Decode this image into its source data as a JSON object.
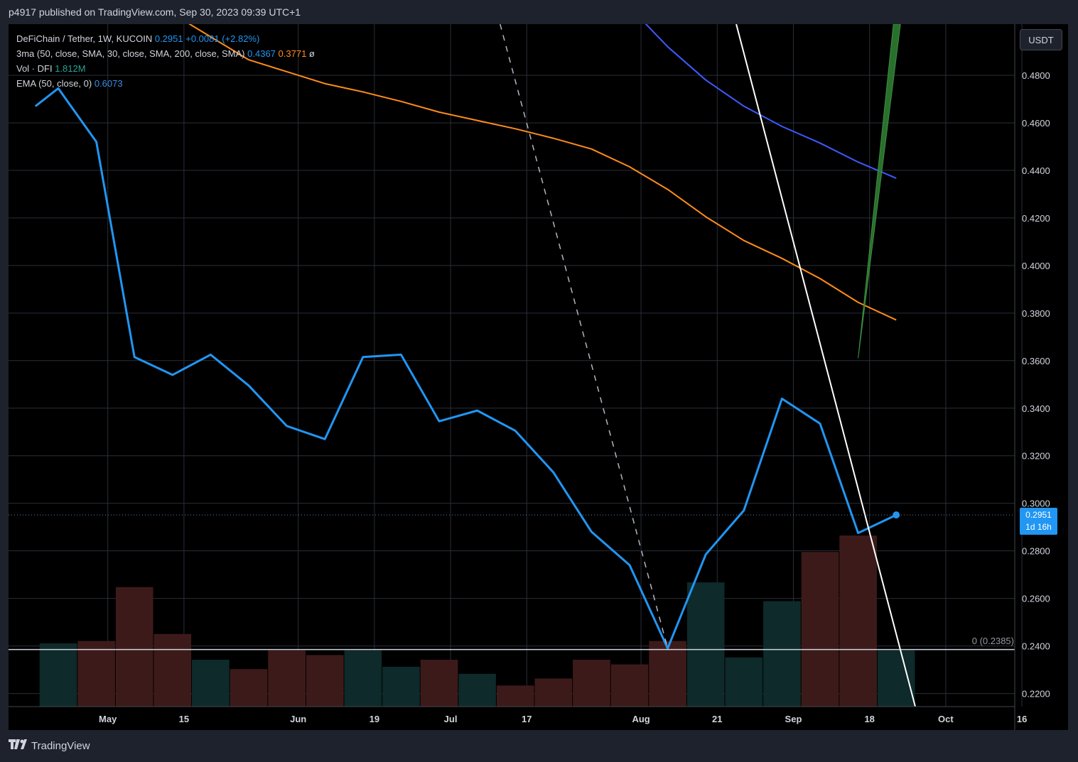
{
  "header": {
    "title": "p4917 published on TradingView.com, Sep 30, 2023 09:39 UTC+1"
  },
  "legend": {
    "symbol": "DeFiChain / Tether, 1W, KUCOIN",
    "price": "0.2951",
    "change": "+0.0081 (+2.82%)",
    "ma_label": "3ma (50, close, SMA, 30, close, SMA, 200, close, SMA)",
    "ma_val1": "0.4367",
    "ma_val2": "0.3771",
    "ma_val3": "ø",
    "vol_label": "Vol · DFI",
    "vol_val": "1.812M",
    "ema_label": "EMA (50, close, 0)",
    "ema_val": "0.6073"
  },
  "currency_button": "USDT",
  "price_tag": {
    "price": "0.2951",
    "countdown": "1d 16h"
  },
  "fib_label": "0 (0.2385)",
  "footer": {
    "brand": "TradingView"
  },
  "colors": {
    "price_line": "#2196f3",
    "sma30": "#ff8c1a",
    "sma50": "#3d5afe",
    "vol_down": "#3d1a1a",
    "vol_up": "#0e2a2a",
    "grid": "#2a2e39",
    "trend_green": "#2e7d32"
  },
  "chart_data": {
    "type": "line",
    "title": "DeFiChain / Tether, 1W, KUCOIN",
    "ylabel": "USDT",
    "ylim": [
      0.2145,
      0.5015
    ],
    "y_ticks": [
      0.48,
      0.46,
      0.44,
      0.42,
      0.4,
      0.38,
      0.36,
      0.34,
      0.32,
      0.3,
      0.28,
      0.26,
      0.24,
      0.22
    ],
    "y_tick_labels": [
      "0.4800",
      "0.4600",
      "0.4400",
      "0.4200",
      "0.4000",
      "0.3800",
      "0.3600",
      "0.3400",
      "0.3200",
      "0.3000",
      "0.2800",
      "0.2600",
      "0.2400",
      "0.2200"
    ],
    "x_tick_labels": [
      {
        "label": "May",
        "week": 1.3
      },
      {
        "label": "15",
        "week": 3.3
      },
      {
        "label": "Jun",
        "week": 6.3
      },
      {
        "label": "19",
        "week": 8.3
      },
      {
        "label": "Jul",
        "week": 10.3
      },
      {
        "label": "17",
        "week": 12.3
      },
      {
        "label": "Aug",
        "week": 15.3
      },
      {
        "label": "21",
        "week": 17.3
      },
      {
        "label": "Sep",
        "week": 19.3
      },
      {
        "label": "18",
        "week": 21.3
      },
      {
        "label": "Oct",
        "week": 23.3
      },
      {
        "label": "16",
        "week": 25.3
      }
    ],
    "series": [
      {
        "name": "Close",
        "x": [
          -0.6,
          0,
          1,
          2,
          3,
          4,
          5,
          6,
          7,
          8,
          9,
          10,
          11,
          12,
          13,
          14,
          15,
          16,
          17,
          18,
          19,
          20,
          21,
          22
        ],
        "values": [
          0.467,
          0.4745,
          0.452,
          0.3615,
          0.354,
          0.3625,
          0.3495,
          0.3325,
          0.327,
          0.3615,
          0.3625,
          0.3345,
          0.339,
          0.3305,
          0.313,
          0.288,
          0.274,
          0.239,
          0.2785,
          0.297,
          0.344,
          0.3335,
          0.2875,
          0.2951
        ]
      },
      {
        "name": "SMA 30",
        "x": [
          3.4,
          5,
          6,
          7,
          8,
          9,
          10,
          11,
          12,
          13,
          14,
          15,
          16,
          17,
          18,
          19,
          20,
          21,
          22
        ],
        "values": [
          0.502,
          0.4865,
          0.4815,
          0.4765,
          0.473,
          0.469,
          0.4645,
          0.461,
          0.4575,
          0.4535,
          0.449,
          0.4415,
          0.432,
          0.4205,
          0.4105,
          0.403,
          0.3945,
          0.3845,
          0.3771
        ]
      },
      {
        "name": "SMA 50",
        "x": [
          15.4,
          16,
          17,
          18,
          19,
          20,
          21,
          22
        ],
        "values": [
          0.502,
          0.492,
          0.478,
          0.467,
          0.4585,
          0.4515,
          0.4435,
          0.4367
        ]
      }
    ],
    "volume": {
      "x": [
        0,
        1,
        2,
        3,
        4,
        5,
        6,
        7,
        8,
        9,
        10,
        11,
        12,
        13,
        14,
        15,
        16,
        17,
        18,
        19,
        20,
        21,
        22
      ],
      "direction": [
        "up",
        "down",
        "down",
        "down",
        "up",
        "down",
        "down",
        "down",
        "up",
        "up",
        "down",
        "up",
        "down",
        "down",
        "down",
        "down",
        "down",
        "up",
        "up",
        "up",
        "down",
        "down",
        "up"
      ],
      "height_pct": [
        27,
        28,
        51,
        31,
        20,
        16,
        24,
        22,
        24,
        17,
        20,
        14,
        9,
        12,
        20,
        18,
        28,
        53,
        21,
        45,
        66,
        73,
        24
      ]
    },
    "annotations": [
      {
        "type": "horizontal_line",
        "value": 0.2385,
        "label": "0 (0.2385)"
      },
      {
        "type": "dashed_trendline",
        "from": {
          "x": 11.6,
          "y": 0.5015
        },
        "to": {
          "x": 16,
          "y": 0.239
        }
      },
      {
        "type": "trendline",
        "from": {
          "x": 17.8,
          "y": 0.5015
        },
        "to": {
          "x": 22.5,
          "y": 0.2145
        }
      },
      {
        "type": "green_ray",
        "from": {
          "x": 21,
          "y": 0.361
        },
        "to": {
          "x": 22,
          "y": 0.5015
        }
      }
    ],
    "current_price": 0.2951
  }
}
